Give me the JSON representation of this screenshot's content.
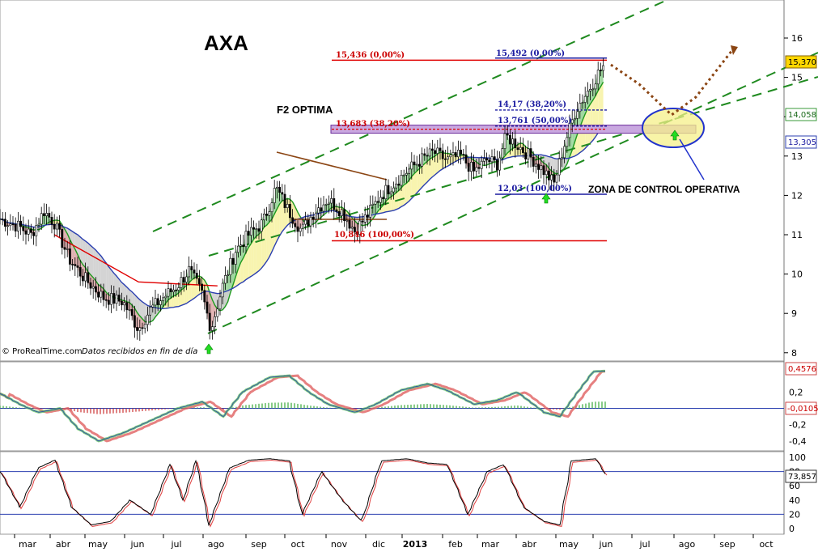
{
  "chart_data": [
    {
      "panel": "price",
      "type": "line",
      "title": "AXA",
      "subtitle": "F2 OPTIMA",
      "source_note": "© ProRealTime.com",
      "source_note_italic": "Datos recibidos en fin de día",
      "annotations": {
        "zone_label": "ZONA DE CONTROL OPERATIVA",
        "fib_red": [
          {
            "label": "15,436 (0,00%)",
            "value": 15.436
          },
          {
            "label": "13,683 (38,20%)",
            "value": 13.683
          },
          {
            "label": "10,846 (100,00%)",
            "value": 10.846
          }
        ],
        "fib_blue": [
          {
            "label": "15,492 (0,00%)",
            "value": 15.492
          },
          {
            "label": "14,17 (38,20%)",
            "value": 14.17
          },
          {
            "label": "13,761 (50,00%)",
            "value": 13.761
          },
          {
            "label": "12,03 (100,00%)",
            "value": 12.03
          }
        ]
      },
      "x_tick_labels": [
        "mar",
        "abr",
        "may",
        "jun",
        "jul",
        "ago",
        "sep",
        "oct",
        "nov",
        "dic",
        "2013",
        "feb",
        "mar",
        "abr",
        "may",
        "jun",
        "jul",
        "ago",
        "sep",
        "oct"
      ],
      "y_tick_labels": [
        "8",
        "9",
        "10",
        "11",
        "12",
        "13",
        "14",
        "15",
        "16"
      ],
      "ylim": [
        7.9,
        16.9
      ],
      "price_tags": [
        {
          "label": "15,370",
          "value": 15.37,
          "color": "#ffd700"
        },
        {
          "label": "14,058",
          "value": 14.058,
          "color": "#3a9a3a"
        },
        {
          "label": "13,305",
          "value": 13.305,
          "color": "#2b3fb0"
        }
      ],
      "series": [
        {
          "name": "",
          "values": [
            {
              "date": "2012-02-15",
              "close": 11.4
            },
            {
              "date": "2012-03-01",
              "close": 11.2
            },
            {
              "date": "2012-03-10",
              "close": 11.0
            },
            {
              "date": "2012-03-20",
              "close": 11.6
            },
            {
              "date": "2012-03-28",
              "close": 11.3
            },
            {
              "date": "2012-04-08",
              "close": 10.4
            },
            {
              "date": "2012-04-20",
              "close": 9.9
            },
            {
              "date": "2012-05-05",
              "close": 9.4
            },
            {
              "date": "2012-05-20",
              "close": 9.3
            },
            {
              "date": "2012-06-01",
              "close": 8.6
            },
            {
              "date": "2012-06-10",
              "close": 9.1
            },
            {
              "date": "2012-06-20",
              "close": 9.4
            },
            {
              "date": "2012-07-01",
              "close": 9.7
            },
            {
              "date": "2012-07-10",
              "close": 10.1
            },
            {
              "date": "2012-07-20",
              "close": 9.5
            },
            {
              "date": "2012-07-27",
              "close": 8.6
            },
            {
              "date": "2012-08-05",
              "close": 9.7
            },
            {
              "date": "2012-08-15",
              "close": 10.6
            },
            {
              "date": "2012-08-25",
              "close": 11.0
            },
            {
              "date": "2012-09-05",
              "close": 11.3
            },
            {
              "date": "2012-09-15",
              "close": 12.2
            },
            {
              "date": "2012-09-25",
              "close": 11.6
            },
            {
              "date": "2012-10-05",
              "close": 11.1
            },
            {
              "date": "2012-10-15",
              "close": 11.6
            },
            {
              "date": "2012-10-25",
              "close": 11.9
            },
            {
              "date": "2012-11-05",
              "close": 11.6
            },
            {
              "date": "2012-11-15",
              "close": 11.1
            },
            {
              "date": "2012-11-25",
              "close": 11.5
            },
            {
              "date": "2012-12-05",
              "close": 12.0
            },
            {
              "date": "2012-12-15",
              "close": 12.3
            },
            {
              "date": "2012-12-25",
              "close": 12.6
            },
            {
              "date": "2013-01-05",
              "close": 12.9
            },
            {
              "date": "2013-01-15",
              "close": 13.1
            },
            {
              "date": "2013-01-25",
              "close": 12.9
            },
            {
              "date": "2013-02-05",
              "close": 13.0
            },
            {
              "date": "2013-02-15",
              "close": 12.6
            },
            {
              "date": "2013-02-25",
              "close": 12.9
            },
            {
              "date": "2013-03-05",
              "close": 12.8
            },
            {
              "date": "2013-03-12",
              "close": 13.5
            },
            {
              "date": "2013-03-20",
              "close": 13.3
            },
            {
              "date": "2013-03-30",
              "close": 13.0
            },
            {
              "date": "2013-04-08",
              "close": 12.7
            },
            {
              "date": "2013-04-18",
              "close": 12.3
            },
            {
              "date": "2013-04-25",
              "close": 13.2
            },
            {
              "date": "2013-05-05",
              "close": 14.2
            },
            {
              "date": "2013-05-15",
              "close": 14.7
            },
            {
              "date": "2013-05-22",
              "close": 15.1
            },
            {
              "date": "2013-05-28",
              "close": 15.37
            }
          ]
        }
      ]
    },
    {
      "panel": "oscillator-1",
      "type": "area",
      "y_tick_labels": [
        "0,2",
        "-0,2",
        "-0,4"
      ],
      "last_value_labels": [
        "0,4576",
        "-0,0105"
      ],
      "series": [
        {
          "name": "",
          "values": [
            {
              "date": "2012-02-15",
              "value": 0.18
            },
            {
              "date": "2012-03-01",
              "value": 0.05
            },
            {
              "date": "2012-03-15",
              "value": -0.05
            },
            {
              "date": "2012-04-01",
              "value": 0.0
            },
            {
              "date": "2012-04-15",
              "value": -0.25
            },
            {
              "date": "2012-05-01",
              "value": -0.4
            },
            {
              "date": "2012-05-20",
              "value": -0.3
            },
            {
              "date": "2012-06-10",
              "value": -0.15
            },
            {
              "date": "2012-07-01",
              "value": 0.0
            },
            {
              "date": "2012-07-20",
              "value": 0.08
            },
            {
              "date": "2012-08-05",
              "value": -0.1
            },
            {
              "date": "2012-08-20",
              "value": 0.2
            },
            {
              "date": "2012-09-10",
              "value": 0.38
            },
            {
              "date": "2012-09-25",
              "value": 0.4
            },
            {
              "date": "2012-10-10",
              "value": 0.2
            },
            {
              "date": "2012-10-25",
              "value": 0.05
            },
            {
              "date": "2012-11-15",
              "value": -0.05
            },
            {
              "date": "2012-12-01",
              "value": 0.05
            },
            {
              "date": "2012-12-20",
              "value": 0.22
            },
            {
              "date": "2013-01-10",
              "value": 0.3
            },
            {
              "date": "2013-01-25",
              "value": 0.22
            },
            {
              "date": "2013-02-15",
              "value": 0.05
            },
            {
              "date": "2013-03-05",
              "value": 0.1
            },
            {
              "date": "2013-03-20",
              "value": 0.2
            },
            {
              "date": "2013-04-10",
              "value": -0.05
            },
            {
              "date": "2013-04-22",
              "value": -0.1
            },
            {
              "date": "2013-05-05",
              "value": 0.18
            },
            {
              "date": "2013-05-18",
              "value": 0.45
            },
            {
              "date": "2013-05-28",
              "value": 0.4576
            }
          ]
        }
      ]
    },
    {
      "panel": "oscillator-2",
      "type": "line",
      "y_tick_labels": [
        "100",
        "80",
        "60",
        "40",
        "20",
        "0"
      ],
      "last_value_label": "73,857",
      "series": [
        {
          "name": "",
          "values": [
            {
              "date": "2012-02-15",
              "value": 80
            },
            {
              "date": "2012-03-01",
              "value": 30
            },
            {
              "date": "2012-03-15",
              "value": 85
            },
            {
              "date": "2012-03-28",
              "value": 96
            },
            {
              "date": "2012-04-10",
              "value": 30
            },
            {
              "date": "2012-04-25",
              "value": 5
            },
            {
              "date": "2012-05-10",
              "value": 10
            },
            {
              "date": "2012-05-25",
              "value": 40
            },
            {
              "date": "2012-06-10",
              "value": 20
            },
            {
              "date": "2012-06-25",
              "value": 90
            },
            {
              "date": "2012-07-05",
              "value": 40
            },
            {
              "date": "2012-07-15",
              "value": 95
            },
            {
              "date": "2012-07-25",
              "value": 5
            },
            {
              "date": "2012-08-10",
              "value": 85
            },
            {
              "date": "2012-08-25",
              "value": 96
            },
            {
              "date": "2012-09-10",
              "value": 98
            },
            {
              "date": "2012-09-25",
              "value": 95
            },
            {
              "date": "2012-10-05",
              "value": 20
            },
            {
              "date": "2012-10-20",
              "value": 80
            },
            {
              "date": "2012-11-05",
              "value": 40
            },
            {
              "date": "2012-11-20",
              "value": 10
            },
            {
              "date": "2012-12-05",
              "value": 95
            },
            {
              "date": "2012-12-25",
              "value": 98
            },
            {
              "date": "2013-01-10",
              "value": 92
            },
            {
              "date": "2013-01-25",
              "value": 90
            },
            {
              "date": "2013-02-10",
              "value": 20
            },
            {
              "date": "2013-02-25",
              "value": 80
            },
            {
              "date": "2013-03-10",
              "value": 90
            },
            {
              "date": "2013-03-25",
              "value": 30
            },
            {
              "date": "2013-04-10",
              "value": 10
            },
            {
              "date": "2013-04-22",
              "value": 5
            },
            {
              "date": "2013-05-01",
              "value": 95
            },
            {
              "date": "2013-05-20",
              "value": 98
            },
            {
              "date": "2013-05-28",
              "value": 73.857
            }
          ]
        }
      ],
      "ylim": [
        -5,
        105
      ]
    }
  ]
}
